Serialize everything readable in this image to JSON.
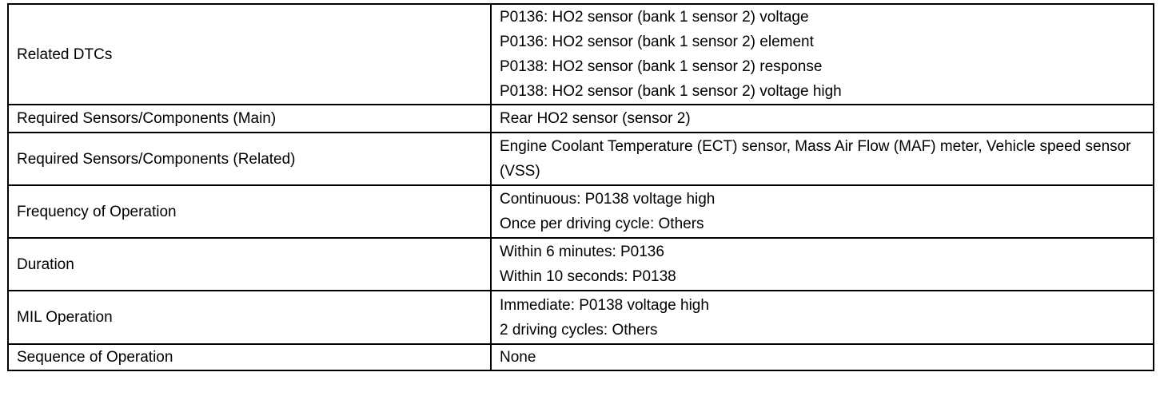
{
  "rows": [
    {
      "label": "Related DTCs",
      "values": [
        "P0136: HO2 sensor (bank 1 sensor 2) voltage",
        "P0136: HO2 sensor (bank 1 sensor 2) element",
        "P0138: HO2 sensor (bank 1 sensor 2) response",
        "P0138: HO2 sensor (bank 1 sensor 2) voltage high"
      ]
    },
    {
      "label": "Required Sensors/Components (Main)",
      "values": [
        "Rear HO2 sensor (sensor 2)"
      ]
    },
    {
      "label": "Required Sensors/Components (Related)",
      "values": [
        "Engine Coolant Temperature (ECT) sensor, Mass Air Flow (MAF) meter, Vehicle speed sensor (VSS)"
      ]
    },
    {
      "label": "Frequency of Operation",
      "values": [
        "Continuous: P0138 voltage high",
        "Once per driving cycle: Others"
      ]
    },
    {
      "label": "Duration",
      "values": [
        "Within 6 minutes: P0136",
        "Within 10 seconds: P0138"
      ]
    },
    {
      "label": "MIL Operation",
      "values": [
        "Immediate: P0138 voltage high",
        "2 driving cycles: Others"
      ]
    },
    {
      "label": "Sequence of Operation",
      "values": [
        "None"
      ]
    }
  ]
}
